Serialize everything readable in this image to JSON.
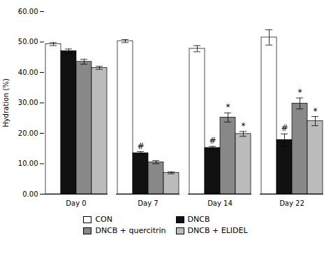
{
  "chart_data": {
    "type": "bar",
    "categories": [
      "Day 0",
      "Day 7",
      "Day 14",
      "Day 22"
    ],
    "series": [
      {
        "name": "CON",
        "color": "#ffffff",
        "values": [
          49.3,
          50.3,
          47.8,
          51.5
        ],
        "errors": [
          0.5,
          0.5,
          1.0,
          2.5
        ]
      },
      {
        "name": "DNCB",
        "color": "#111111",
        "values": [
          47.0,
          13.5,
          15.2,
          17.8
        ],
        "errors": [
          0.7,
          0.5,
          0.5,
          2.0
        ]
      },
      {
        "name": "DNCB + quercitrin",
        "color": "#888888",
        "values": [
          43.5,
          10.5,
          25.2,
          29.8
        ],
        "errors": [
          0.8,
          0.5,
          1.5,
          1.8
        ]
      },
      {
        "name": "DNCB + ELIDEL",
        "color": "#bbbbbb",
        "values": [
          41.5,
          7.0,
          19.8,
          24.0
        ],
        "errors": [
          0.5,
          0.3,
          0.8,
          1.5
        ]
      }
    ],
    "ylabel": "Hydration (%)",
    "ylim": [
      0,
      60
    ],
    "yticks": [
      {
        "value": 0,
        "label": "0.00"
      },
      {
        "value": 10,
        "label": "10.00"
      },
      {
        "value": 20,
        "label": "20.00"
      },
      {
        "value": 30,
        "label": "30.00"
      },
      {
        "value": 40,
        "label": "40.00"
      },
      {
        "value": 50,
        "label": "50.00"
      },
      {
        "value": 60,
        "label": "60.00"
      }
    ],
    "annotations": [
      {
        "category": "Day 7",
        "series": "DNCB",
        "text": "#"
      },
      {
        "category": "Day 14",
        "series": "DNCB",
        "text": "#"
      },
      {
        "category": "Day 14",
        "series": "DNCB + quercitrin",
        "text": "*"
      },
      {
        "category": "Day 14",
        "series": "DNCB + ELIDEL",
        "text": "*"
      },
      {
        "category": "Day 22",
        "series": "DNCB",
        "text": "#"
      },
      {
        "category": "Day 22",
        "series": "DNCB + quercitrin",
        "text": "*"
      },
      {
        "category": "Day 22",
        "series": "DNCB + ELIDEL",
        "text": "*"
      }
    ],
    "grid": false,
    "legend": "bottom"
  }
}
